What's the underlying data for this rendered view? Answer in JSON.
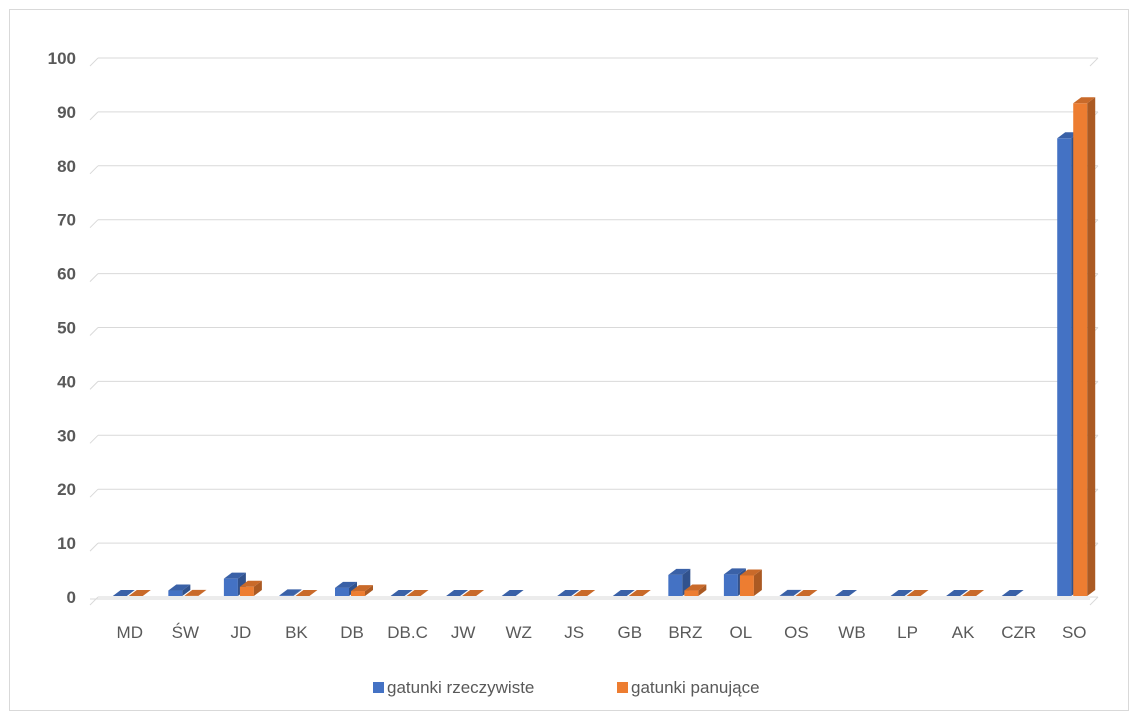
{
  "chart_data": {
    "type": "bar",
    "title": "",
    "xlabel": "",
    "ylabel": "",
    "ylim": [
      0,
      100
    ],
    "yticks": [
      0,
      10,
      20,
      30,
      40,
      50,
      60,
      70,
      80,
      90,
      100
    ],
    "grid": true,
    "legend_position": "bottom",
    "categories": [
      "MD",
      "ŚW",
      "JD",
      "BK",
      "DB",
      "DB.C",
      "JW",
      "WZ",
      "JS",
      "GB",
      "BRZ",
      "OL",
      "OS",
      "WB",
      "LP",
      "AK",
      "CZR",
      "SO"
    ],
    "series": [
      {
        "name": "gatunki rzeczywiste",
        "color": "#4472c4",
        "values": [
          0.1,
          1.2,
          3.4,
          0.3,
          1.7,
          0.1,
          0.1,
          0.05,
          0.1,
          0.1,
          4.1,
          4.2,
          0.2,
          0.05,
          0.1,
          0.1,
          0.05,
          85.1
        ]
      },
      {
        "name": "gatunki panujące",
        "color": "#ed7d31",
        "values": [
          0.05,
          0.2,
          1.9,
          0.1,
          1.1,
          0.05,
          0.05,
          0,
          0.05,
          0.05,
          1.2,
          4.0,
          0.1,
          0,
          0.05,
          0.05,
          0,
          91.6
        ]
      }
    ]
  }
}
